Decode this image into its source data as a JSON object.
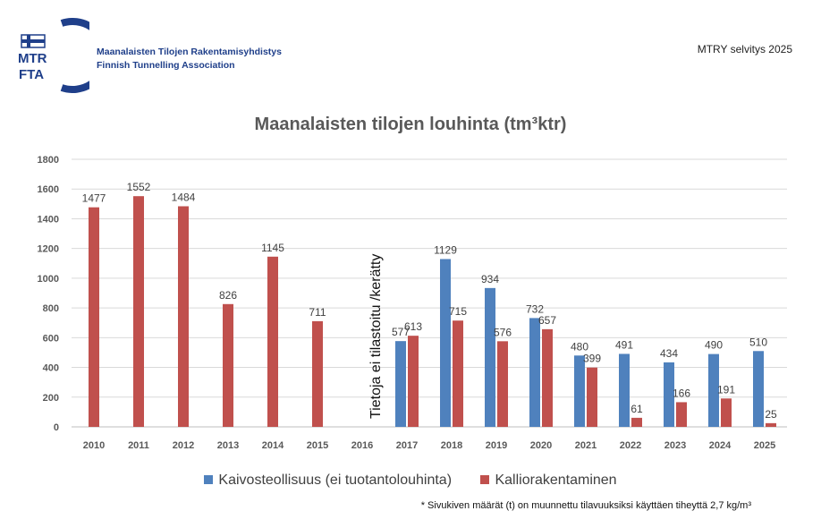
{
  "header": {
    "org_line1": "Maanalaisten Tilojen Rakentamisyhdistys",
    "org_line2": "Finnish Tunnelling Association",
    "logo_text_top": "MTR",
    "logo_text_bottom": "FTA",
    "report_label": "MTRY selvitys 2025"
  },
  "footnote": "* Sivukiven määrät (t) on muunnettu tilavuuksiksi käyttäen tiheyttä 2,7 kg/m³",
  "colors": {
    "kaivos": "#4f81bd",
    "kallio": "#c0504d",
    "logo_blue": "#1f3f8a"
  },
  "chart_data": {
    "type": "bar",
    "title": "Maanalaisten tilojen louhinta (tm³ktr)",
    "categories": [
      "2010",
      "2011",
      "2012",
      "2013",
      "2014",
      "2015",
      "2016",
      "2017",
      "2018",
      "2019",
      "2020",
      "2021",
      "2022",
      "2023",
      "2024",
      "2025"
    ],
    "ylim": [
      0,
      1800
    ],
    "yticks": [
      0,
      200,
      400,
      600,
      800,
      1000,
      1200,
      1400,
      1600,
      1800
    ],
    "grid": true,
    "legend_position": "bottom",
    "annotation": "Tietoja ei tilastoitu /kerätty",
    "series": [
      {
        "name": "Kaivosteollisuus (ei tuotantolouhinta)",
        "values": [
          null,
          null,
          null,
          null,
          null,
          null,
          null,
          577,
          1129,
          934,
          732,
          480,
          491,
          434,
          490,
          510
        ]
      },
      {
        "name": "Kalliorakentaminen",
        "values": [
          1477,
          1552,
          1484,
          826,
          1145,
          711,
          null,
          613,
          715,
          576,
          657,
          399,
          61,
          166,
          191,
          25
        ]
      }
    ]
  }
}
